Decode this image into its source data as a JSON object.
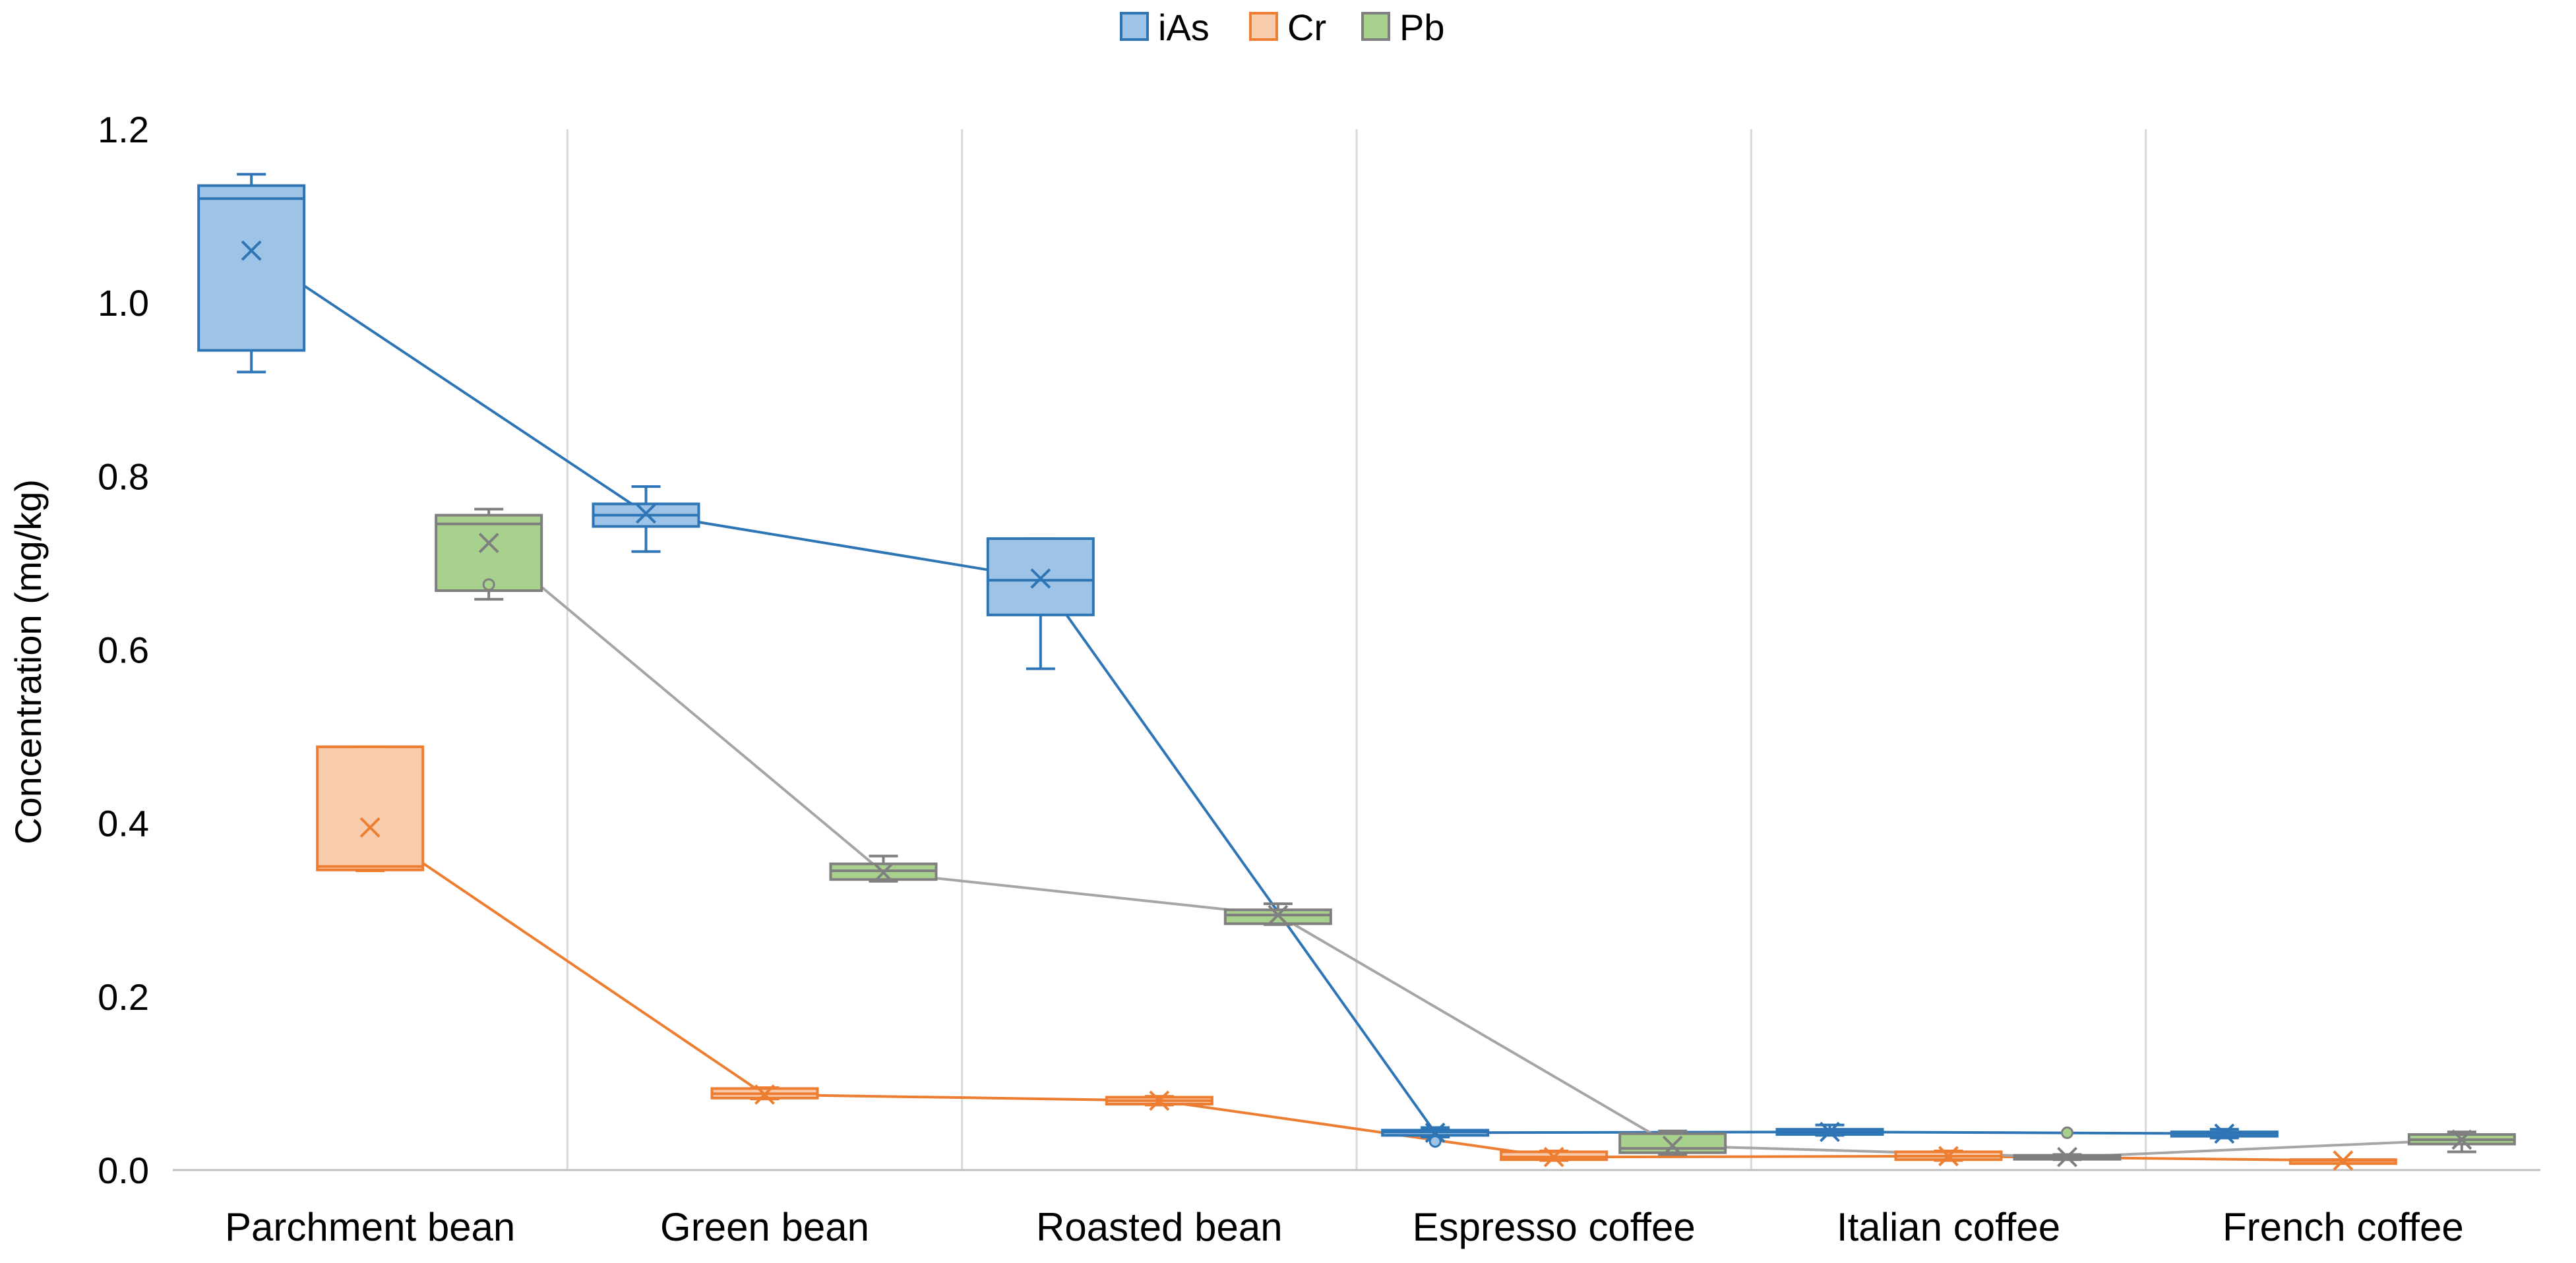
{
  "chart_data": {
    "type": "box",
    "title": "",
    "xlabel": "",
    "ylabel": "Concentration (mg/kg)",
    "ylim": [
      0,
      1.2
    ],
    "yticks": [
      0.0,
      0.2,
      0.4,
      0.6,
      0.8,
      1.0,
      1.2
    ],
    "ytick_labels": [
      "0.0",
      "0.2",
      "0.4",
      "0.6",
      "0.8",
      "1.0",
      "1.2"
    ],
    "legend_position": "top-center",
    "grid": "vertical category separators",
    "categories": [
      "Parchment bean",
      "Green bean",
      "Roasted bean",
      "Espresso coffee",
      "Italian coffee",
      "French coffee"
    ],
    "series": [
      {
        "name": "iAs",
        "fill": "#9DC3E6",
        "stroke": "#2E75B6",
        "boxes": [
          {
            "min": 0.92,
            "q1": 0.945,
            "median": 1.12,
            "q3": 1.135,
            "max": 1.148,
            "mean": 1.06,
            "outliers": []
          },
          {
            "min": 0.713,
            "q1": 0.742,
            "median": 0.755,
            "q3": 0.768,
            "max": 0.788,
            "mean": 0.757,
            "outliers": []
          },
          {
            "min": 0.578,
            "q1": 0.64,
            "median": 0.68,
            "q3": 0.728,
            "max": 0.728,
            "mean": 0.682,
            "outliers": []
          },
          {
            "min": 0.038,
            "q1": 0.04,
            "median": 0.044,
            "q3": 0.046,
            "max": 0.049,
            "mean": 0.043,
            "outliers": [
              0.033
            ]
          },
          {
            "min": 0.04,
            "q1": 0.041,
            "median": 0.044,
            "q3": 0.047,
            "max": 0.052,
            "mean": 0.044,
            "outliers": []
          },
          {
            "min": 0.037,
            "q1": 0.039,
            "median": 0.042,
            "q3": 0.044,
            "max": 0.047,
            "mean": 0.042,
            "outliers": []
          }
        ]
      },
      {
        "name": "Cr",
        "fill": "#F8CBAD",
        "stroke": "#ED7D31",
        "boxes": [
          {
            "min": 0.345,
            "q1": 0.346,
            "median": 0.35,
            "q3": 0.488,
            "max": 0.488,
            "mean": 0.395,
            "outliers": []
          },
          {
            "min": 0.082,
            "q1": 0.083,
            "median": 0.088,
            "q3": 0.094,
            "max": 0.095,
            "mean": 0.087,
            "outliers": []
          },
          {
            "min": 0.075,
            "q1": 0.076,
            "median": 0.08,
            "q3": 0.084,
            "max": 0.085,
            "mean": 0.08,
            "outliers": []
          },
          {
            "min": 0.011,
            "q1": 0.012,
            "median": 0.015,
            "q3": 0.021,
            "max": 0.022,
            "mean": 0.015,
            "outliers": []
          },
          {
            "min": 0.011,
            "q1": 0.012,
            "median": 0.016,
            "q3": 0.021,
            "max": 0.022,
            "mean": 0.016,
            "outliers": []
          },
          {
            "min": 0.009,
            "q1": 0.01,
            "median": 0.011,
            "q3": 0.012,
            "max": 0.012,
            "mean": 0.011,
            "outliers": []
          }
        ]
      },
      {
        "name": "Pb",
        "fill": "#A9D18E",
        "stroke": "#7F7F7F",
        "mean_line": "#A5A5A5",
        "boxes": [
          {
            "min": 0.658,
            "q1": 0.668,
            "median": 0.745,
            "q3": 0.755,
            "max": 0.762,
            "mean": 0.723,
            "outliers": [
              0.675
            ]
          },
          {
            "min": 0.333,
            "q1": 0.335,
            "median": 0.345,
            "q3": 0.353,
            "max": 0.362,
            "mean": 0.343,
            "outliers": []
          },
          {
            "min": 0.283,
            "q1": 0.284,
            "median": 0.294,
            "q3": 0.3,
            "max": 0.307,
            "mean": 0.294,
            "outliers": []
          },
          {
            "min": 0.018,
            "q1": 0.02,
            "median": 0.025,
            "q3": 0.042,
            "max": 0.045,
            "mean": 0.028,
            "outliers": []
          },
          {
            "min": 0.012,
            "q1": 0.013,
            "median": 0.015,
            "q3": 0.017,
            "max": 0.018,
            "mean": 0.015,
            "outliers": [
              0.043
            ]
          },
          {
            "min": 0.021,
            "q1": 0.03,
            "median": 0.035,
            "q3": 0.041,
            "max": 0.044,
            "mean": 0.035,
            "outliers": []
          }
        ]
      }
    ]
  }
}
